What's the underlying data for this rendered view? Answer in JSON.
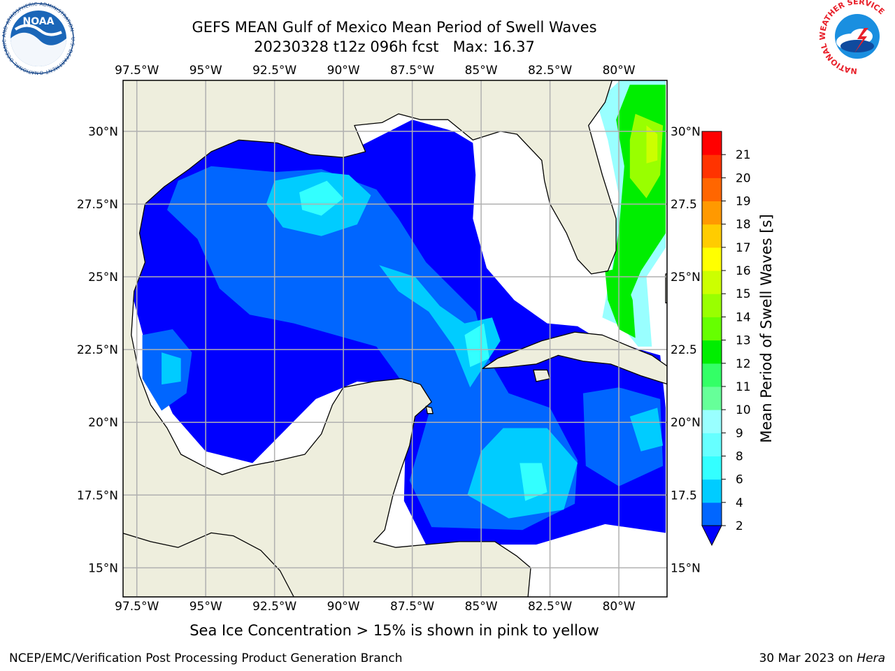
{
  "title": {
    "line1": "GEFS MEAN Gulf of Mexico Mean Period of Swell Waves",
    "line2": "20230328 t12z 096h fcst   Max: 16.37"
  },
  "map": {
    "lon_range": [
      -98.0,
      -78.25
    ],
    "lat_range": [
      14.0,
      31.75
    ],
    "lon_ticks": [
      "97.5°W",
      "95°W",
      "92.5°W",
      "90°W",
      "87.5°W",
      "85°W",
      "82.5°W",
      "80°W"
    ],
    "lat_ticks_left": [
      "30°N",
      "27.5°N",
      "25°N",
      "22.5°N",
      "20°N",
      "17.5°N",
      "15°N"
    ],
    "lat_ticks_right": [
      "30°N",
      "27.5",
      "25°N",
      "22.5",
      "20°N",
      "17.5",
      "15°N"
    ],
    "gridlines": true,
    "colors": {
      "land": "#eeeedd",
      "ocean_no_data": "#ffffff",
      "coastline": "#000000",
      "grid": "#b0b0b0"
    }
  },
  "colorbar": {
    "label": "Mean Period of Swell Waves [s]",
    "ticks": [
      "2",
      "4",
      "6",
      "8",
      "9",
      "10",
      "11",
      "12",
      "13",
      "14",
      "15",
      "16",
      "17",
      "18",
      "19",
      "20",
      "21"
    ],
    "colors": [
      "#0066ff",
      "#00ccff",
      "#33ffff",
      "#66ffff",
      "#99ffff",
      "#66ff99",
      "#33ff66",
      "#00ee00",
      "#66ff00",
      "#99ff00",
      "#ccff00",
      "#ffff00",
      "#ffcc00",
      "#ff9900",
      "#ff6600",
      "#ff3300",
      "#ff0000"
    ],
    "under_color": "#0000ff",
    "extend": "min"
  },
  "ice_note": "Sea Ice Concentration > 15% is shown in pink to yellow",
  "footer": {
    "left": "NCEP/EMC/Verification Post Processing Product Generation Branch",
    "right_date": "30 Mar 2023 on ",
    "right_host": "Hera"
  },
  "logos": {
    "noaa_text": "NOAA",
    "noaa_ring": "NATIONAL OCEANIC AND ATMOSPHERIC ADMINISTRATION · U.S. DEPARTMENT OF COMMERCE",
    "nws_ring": "NATIONAL WEATHER SERVICE"
  }
}
